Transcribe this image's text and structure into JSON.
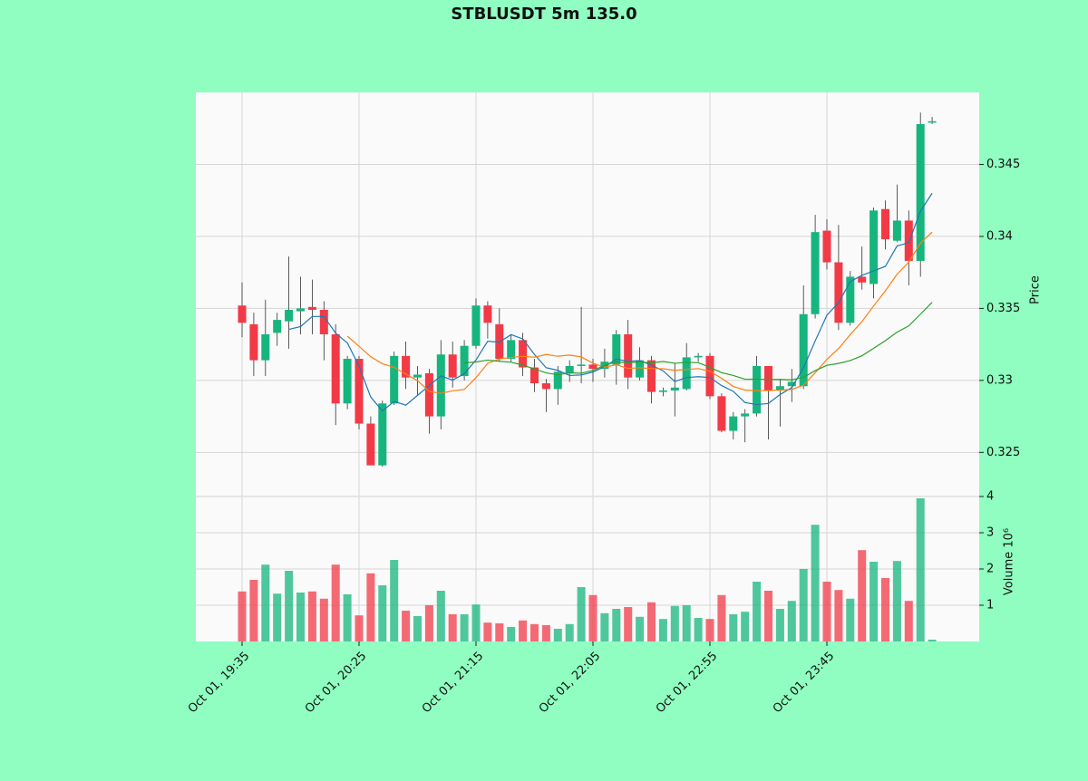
{
  "chart_data": {
    "type": "candlestick",
    "title": "STBLUSDT 5m 135.0",
    "ylabel": "Price",
    "volume_label": "Volume  10⁶",
    "up_color": "#16b57e",
    "down_color": "#f23a47",
    "open": [
      0.3352,
      0.3339,
      0.3314,
      0.3333,
      0.3341,
      0.3348,
      0.3351,
      0.3349,
      0.3332,
      0.3284,
      0.3315,
      0.327,
      0.3241,
      0.3284,
      0.3317,
      0.3302,
      0.3305,
      0.3275,
      0.3318,
      0.3303,
      0.3324,
      0.3352,
      0.3339,
      0.3315,
      0.3328,
      0.3309,
      0.3298,
      0.3294,
      0.3305,
      0.331,
      0.3311,
      0.3308,
      0.3311,
      0.3332,
      0.3302,
      0.3314,
      0.3292,
      0.3293,
      0.3294,
      0.3316,
      0.3317,
      0.3289,
      0.3265,
      0.3275,
      0.3277,
      0.331,
      0.3293,
      0.3296,
      0.3296,
      0.3346,
      0.3404,
      0.3382,
      0.334,
      0.3372,
      0.3367,
      0.3419,
      0.3397,
      0.3411,
      0.3383,
      0.3479
    ],
    "high": [
      0.3368,
      0.3347,
      0.3356,
      0.3347,
      0.3386,
      0.3372,
      0.337,
      0.3355,
      0.3339,
      0.3317,
      0.3317,
      0.3275,
      0.3286,
      0.332,
      0.3327,
      0.331,
      0.3308,
      0.3328,
      0.3327,
      0.3328,
      0.3357,
      0.3355,
      0.335,
      0.3332,
      0.3333,
      0.3315,
      0.3301,
      0.331,
      0.3314,
      0.3351,
      0.3315,
      0.3322,
      0.3335,
      0.3342,
      0.3323,
      0.3317,
      0.3295,
      0.3312,
      0.3326,
      0.3319,
      0.3319,
      0.3291,
      0.3278,
      0.328,
      0.3317,
      0.331,
      0.3301,
      0.3308,
      0.3366,
      0.3415,
      0.3412,
      0.3408,
      0.3376,
      0.3393,
      0.342,
      0.3425,
      0.3436,
      0.3418,
      0.3486,
      0.3483
    ],
    "low": [
      0.333,
      0.3303,
      0.3303,
      0.3324,
      0.3322,
      0.3332,
      0.3332,
      0.3314,
      0.3269,
      0.328,
      0.3266,
      0.3241,
      0.324,
      0.3283,
      0.3294,
      0.329,
      0.3263,
      0.3266,
      0.3295,
      0.33,
      0.3322,
      0.3329,
      0.3313,
      0.3313,
      0.3303,
      0.3292,
      0.3278,
      0.3283,
      0.3299,
      0.3298,
      0.3299,
      0.3302,
      0.3297,
      0.3294,
      0.33,
      0.3284,
      0.3289,
      0.3275,
      0.3293,
      0.3313,
      0.3287,
      0.3264,
      0.3259,
      0.3257,
      0.3275,
      0.3259,
      0.3268,
      0.3285,
      0.3294,
      0.3343,
      0.3377,
      0.3335,
      0.3338,
      0.3363,
      0.3357,
      0.3391,
      0.3396,
      0.3366,
      0.3372,
      0.3478
    ],
    "close": [
      0.334,
      0.3314,
      0.3332,
      0.3342,
      0.3349,
      0.335,
      0.3349,
      0.3332,
      0.3284,
      0.3315,
      0.327,
      0.3241,
      0.3284,
      0.3317,
      0.3302,
      0.3304,
      0.3275,
      0.3318,
      0.3302,
      0.3324,
      0.3352,
      0.334,
      0.3315,
      0.3328,
      0.3309,
      0.3298,
      0.3294,
      0.3306,
      0.331,
      0.3311,
      0.3308,
      0.3313,
      0.3332,
      0.3302,
      0.3314,
      0.3292,
      0.3293,
      0.3295,
      0.3316,
      0.3317,
      0.3289,
      0.3265,
      0.3275,
      0.3277,
      0.331,
      0.3293,
      0.3296,
      0.3299,
      0.3346,
      0.3403,
      0.3382,
      0.334,
      0.3372,
      0.3368,
      0.3418,
      0.3398,
      0.3411,
      0.3383,
      0.3478,
      0.348
    ],
    "volume": [
      1.38,
      1.7,
      2.12,
      1.32,
      1.95,
      1.35,
      1.38,
      1.18,
      2.12,
      1.3,
      0.72,
      1.88,
      1.55,
      2.25,
      0.85,
      0.7,
      1.0,
      1.4,
      0.75,
      0.75,
      1.02,
      0.52,
      0.5,
      0.4,
      0.58,
      0.48,
      0.45,
      0.35,
      0.48,
      1.5,
      1.28,
      0.78,
      0.9,
      0.95,
      0.68,
      1.08,
      0.62,
      0.98,
      1.0,
      0.65,
      0.62,
      1.28,
      0.75,
      0.82,
      1.65,
      1.4,
      0.9,
      1.12,
      2.0,
      3.22,
      1.65,
      1.42,
      1.18,
      2.52,
      2.2,
      1.75,
      2.22,
      1.12,
      3.95,
      0.05
    ],
    "moving_averages": [
      {
        "color": "#1f77b4",
        "values": [
          null,
          null,
          null,
          null,
          0.33354,
          0.33374,
          0.33444,
          0.33444,
          0.33328,
          0.3326,
          0.331,
          0.32884,
          0.32788,
          0.32854,
          0.32828,
          0.32896,
          0.32964,
          0.33032,
          0.33002,
          0.33046,
          0.33142,
          0.33272,
          0.33266,
          0.33318,
          0.33288,
          0.3318,
          0.33088,
          0.3307,
          0.33034,
          0.33038,
          0.33058,
          0.33096,
          0.33148,
          0.33132,
          0.33138,
          0.33106,
          0.33066,
          0.32992,
          0.3302,
          0.33026,
          0.3302,
          0.32964,
          0.32924,
          0.32846,
          0.32832,
          0.3284,
          0.32902,
          0.3295,
          0.33088,
          0.33274,
          0.33452,
          0.3354,
          0.33686,
          0.3373,
          0.3376,
          0.33792,
          0.33934,
          0.33956,
          0.34176,
          0.343
        ]
      },
      {
        "color": "#ff7f0e",
        "values": [
          null,
          null,
          null,
          null,
          null,
          null,
          null,
          null,
          null,
          0.33307,
          0.33237,
          0.33164,
          0.33116,
          0.33091,
          0.33044,
          0.32998,
          0.32924,
          0.3291,
          0.32928,
          0.32937,
          0.33019,
          0.33118,
          0.33149,
          0.3316,
          0.33167,
          0.33161,
          0.3318,
          0.33168,
          0.33176,
          0.33163,
          0.33119,
          0.33092,
          0.33109,
          0.33083,
          0.33088,
          0.33082,
          0.33081,
          0.3307,
          0.33076,
          0.33082,
          0.33063,
          0.33015,
          0.32958,
          0.32933,
          0.32929,
          0.3293,
          0.32933,
          0.32937,
          0.32967,
          0.33053,
          0.33146,
          0.33221,
          0.33318,
          0.33409,
          0.33517,
          0.33622,
          0.33737,
          0.33821,
          0.33953,
          0.3403
        ]
      },
      {
        "color": "#2ca02c",
        "values": [
          null,
          null,
          null,
          null,
          null,
          null,
          null,
          null,
          null,
          null,
          null,
          null,
          null,
          null,
          null,
          null,
          null,
          null,
          null,
          0.33122,
          0.33128,
          0.33141,
          0.33133,
          0.33126,
          0.33106,
          0.3308,
          0.33052,
          0.33039,
          0.33052,
          0.3305,
          0.33069,
          0.33105,
          0.33129,
          0.33122,
          0.33128,
          0.33122,
          0.33131,
          0.33119,
          0.33126,
          0.33123,
          0.33091,
          0.33054,
          0.33034,
          0.33008,
          0.33009,
          0.33006,
          0.33007,
          0.33004,
          0.33022,
          0.33068,
          0.33105,
          0.33118,
          0.33138,
          0.33171,
          0.33223,
          0.33276,
          0.33335,
          0.33379,
          0.3346,
          0.33542
        ]
      }
    ],
    "ylim": [
      0.322,
      0.35
    ],
    "yticks": [
      0.325,
      0.33,
      0.335,
      0.34,
      0.345
    ],
    "volume_ylim": [
      0,
      4
    ],
    "volume_yticks": [
      1,
      2,
      3,
      4
    ],
    "xticks": [
      {
        "value": 0,
        "label": "Oct 01, 19:35"
      },
      {
        "value": 10,
        "label": "Oct 01, 20:25"
      },
      {
        "value": 20,
        "label": "Oct 01, 21:15"
      },
      {
        "value": 30,
        "label": "Oct 01, 22:05"
      },
      {
        "value": 40,
        "label": "Oct 01, 22:55"
      },
      {
        "value": 50,
        "label": "Oct 01, 23:45"
      }
    ],
    "grid": true
  }
}
